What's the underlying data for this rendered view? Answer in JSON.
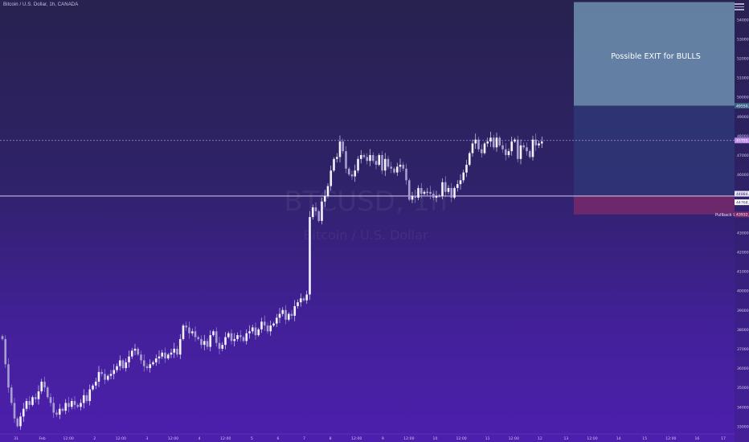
{
  "header": {
    "symbol_line": "Bitcoin / U.S. Dollar, 1h, CANADA"
  },
  "watermark": {
    "title": "BTCUSD, 1h",
    "subtitle": "Bitcoin / U.S. Dollar"
  },
  "annotations": {
    "target_label": "Possible EXIT for BULLS",
    "pullback_label": "Pullback Level"
  },
  "colors": {
    "candle_up": "#f4f2ff",
    "candle_down": "#a89fd0",
    "target_zone": "#6d8fb0",
    "mid_zone": "#2f3a7a",
    "stop_zone": "#7a2a6a",
    "dotted_line": "#b98ce8",
    "pullback_line": "#e8e6f8"
  },
  "price_labels": {
    "target": "49550.0",
    "current": "47755.5",
    "pullback": "44884.0",
    "pullback2": "44768.0",
    "stop": "43932.5"
  },
  "chart_data": {
    "type": "candlestick",
    "y_ticks": [
      "54000.0",
      "53000.0",
      "52000.0",
      "51000.0",
      "50000.0",
      "49000.0",
      "48000.0",
      "47000.0",
      "46000.0",
      "45000.0",
      "44000.0",
      "43000.0",
      "42000.0",
      "41000.0",
      "40000.0",
      "39000.0",
      "38000.0",
      "37000.0",
      "36000.0",
      "35000.0",
      "34000.0",
      "33000.0"
    ],
    "x_ticks": [
      "31",
      "Feb",
      "12:00",
      "2",
      "12:00",
      "3",
      "12:00",
      "4",
      "12:00",
      "5",
      "6",
      "7",
      "8",
      "12:00",
      "9",
      "12:00",
      "10",
      "12:00",
      "11",
      "12:00",
      "12",
      "13",
      "12:00",
      "14",
      "15",
      "12:00",
      "16",
      "17"
    ],
    "ylim": [
      32600,
      54800
    ],
    "levels": {
      "target": 49550,
      "current": 47755.5,
      "pullback": 44884,
      "stop": 43932.5,
      "zone_top": 54900
    },
    "projection": [
      {
        "x_index": 265,
        "price": 47755
      },
      {
        "x_index": 285,
        "price": 44884
      },
      {
        "x_index": 305,
        "price": 49400
      }
    ],
    "closes": [
      37500,
      36200,
      35000,
      34200,
      33400,
      33000,
      33500,
      33900,
      34300,
      34100,
      34500,
      34400,
      34800,
      35300,
      35000,
      34500,
      34200,
      33700,
      33600,
      33900,
      33800,
      34200,
      34000,
      34300,
      34100,
      34000,
      34200,
      34600,
      34300,
      34900,
      35100,
      35300,
      35800,
      35700,
      35400,
      35600,
      35700,
      35900,
      36100,
      36400,
      36000,
      36300,
      36600,
      36900,
      37000,
      36700,
      36400,
      36100,
      36000,
      36200,
      36300,
      36500,
      36600,
      36800,
      36500,
      36700,
      36800,
      37000,
      36700,
      37500,
      38200,
      38100,
      37800,
      37900,
      37600,
      37500,
      37200,
      37400,
      37100,
      37700,
      37900,
      37300,
      37000,
      37200,
      37600,
      37800,
      37400,
      37500,
      37700,
      37600,
      37400,
      37800,
      37900,
      38100,
      37700,
      38000,
      38400,
      38200,
      37900,
      38200,
      38300,
      38600,
      38800,
      39000,
      38500,
      38800,
      38700,
      39200,
      39400,
      39600,
      39500,
      39800,
      43800,
      44300,
      44100,
      43600,
      44600,
      44900,
      45400,
      46200,
      46800,
      46900,
      47700,
      47200,
      46300,
      46000,
      45900,
      46200,
      46800,
      47000,
      46900,
      46700,
      47000,
      46700,
      46500,
      47000,
      46200,
      46800,
      46400,
      46300,
      46100,
      46400,
      46500,
      46300,
      45700,
      44700,
      44900,
      44800,
      45300,
      45000,
      45100,
      45100,
      45000,
      44800,
      44900,
      44900,
      45600,
      45100,
      45300,
      44800,
      45300,
      45500,
      45700,
      46100,
      46500,
      47100,
      47600,
      47800,
      47300,
      47100,
      47600,
      47700,
      47900,
      47400,
      47900,
      47500,
      47300,
      47000,
      47200,
      47700,
      47800,
      46800,
      47500,
      47400,
      47200,
      46900,
      47800,
      47500,
      47600,
      47700
    ],
    "title": "",
    "xlabel": "",
    "ylabel": ""
  }
}
